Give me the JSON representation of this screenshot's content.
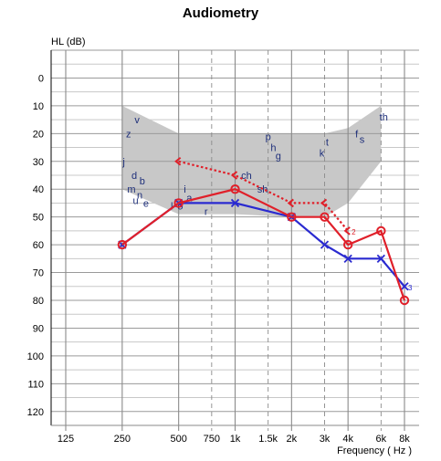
{
  "chart_data": {
    "type": "line",
    "title": "Audiometry",
    "ylabel": "HL (dB)",
    "xlabel": "Frequency ( Hz )",
    "x_ticks": [
      {
        "label": "125",
        "hz": 125
      },
      {
        "label": "250",
        "hz": 250
      },
      {
        "label": "500",
        "hz": 500
      },
      {
        "label": "750",
        "hz": 750
      },
      {
        "label": "1k",
        "hz": 1000
      },
      {
        "label": "1.5k",
        "hz": 1500
      },
      {
        "label": "2k",
        "hz": 2000
      },
      {
        "label": "3k",
        "hz": 3000
      },
      {
        "label": "4k",
        "hz": 4000
      },
      {
        "label": "6k",
        "hz": 6000
      },
      {
        "label": "8k",
        "hz": 8000
      }
    ],
    "xscale": "log2",
    "xlim": [
      125,
      8000
    ],
    "ylim": [
      -10,
      125
    ],
    "y_reversed": true,
    "y_ticks": [
      0,
      10,
      20,
      30,
      40,
      50,
      60,
      70,
      80,
      90,
      100,
      110,
      120
    ],
    "grid": true,
    "series": [
      {
        "color": "#2a2ad0",
        "marker": "x",
        "line": "solid",
        "points": [
          [
            250,
            60
          ],
          [
            500,
            45
          ],
          [
            1000,
            45
          ],
          [
            2000,
            50
          ],
          [
            3000,
            60
          ],
          [
            4000,
            65
          ],
          [
            6000,
            65
          ],
          [
            8000,
            75
          ]
        ],
        "annotation": {
          "hz": 8000,
          "db": 75,
          "text": "3"
        }
      },
      {
        "color": "#e0202a",
        "marker": "o",
        "line": "solid",
        "points": [
          [
            250,
            60
          ],
          [
            500,
            45
          ],
          [
            1000,
            40
          ],
          [
            2000,
            50
          ],
          [
            3000,
            50
          ],
          [
            4000,
            60
          ],
          [
            6000,
            55
          ],
          [
            8000,
            80
          ]
        ]
      },
      {
        "color": "#e0202a",
        "marker": "<",
        "line": "dotted",
        "points": [
          [
            500,
            30
          ],
          [
            1000,
            35
          ],
          [
            2000,
            45
          ],
          [
            3000,
            45
          ],
          [
            4000,
            55
          ]
        ],
        "annotation": {
          "hz": 4000,
          "db": 55,
          "text": "2"
        }
      }
    ],
    "speech_banana": {
      "color": "#c8c8c8",
      "upper": [
        [
          250,
          10
        ],
        [
          500,
          20
        ],
        [
          1000,
          20
        ],
        [
          2000,
          20
        ],
        [
          3000,
          20
        ],
        [
          4000,
          18
        ],
        [
          6000,
          10
        ]
      ],
      "lower": [
        [
          6000,
          30
        ],
        [
          4000,
          45
        ],
        [
          3000,
          50
        ],
        [
          2000,
          50
        ],
        [
          1000,
          49
        ],
        [
          500,
          49
        ],
        [
          250,
          40
        ]
      ]
    },
    "phonemes": [
      {
        "text": "v",
        "hz": 300,
        "db": 15
      },
      {
        "text": "z",
        "hz": 270,
        "db": 20
      },
      {
        "text": "j",
        "hz": 255,
        "db": 30
      },
      {
        "text": "d",
        "hz": 290,
        "db": 35
      },
      {
        "text": "b",
        "hz": 320,
        "db": 37
      },
      {
        "text": "m",
        "hz": 280,
        "db": 40
      },
      {
        "text": "n",
        "hz": 310,
        "db": 42
      },
      {
        "text": "u",
        "hz": 295,
        "db": 44
      },
      {
        "text": "e",
        "hz": 335,
        "db": 45
      },
      {
        "text": "l",
        "hz": 460,
        "db": 46
      },
      {
        "text": "o",
        "hz": 510,
        "db": 46
      },
      {
        "text": "i",
        "hz": 540,
        "db": 40
      },
      {
        "text": "a",
        "hz": 570,
        "db": 43
      },
      {
        "text": "r",
        "hz": 700,
        "db": 48
      },
      {
        "text": "p",
        "hz": 1500,
        "db": 21
      },
      {
        "text": "h",
        "hz": 1600,
        "db": 25
      },
      {
        "text": "g",
        "hz": 1700,
        "db": 28
      },
      {
        "text": "ch",
        "hz": 1150,
        "db": 35
      },
      {
        "text": "sh",
        "hz": 1400,
        "db": 40
      },
      {
        "text": "k",
        "hz": 2900,
        "db": 27
      },
      {
        "text": "t",
        "hz": 3100,
        "db": 23
      },
      {
        "text": "f",
        "hz": 4450,
        "db": 20
      },
      {
        "text": "s",
        "hz": 4750,
        "db": 22
      },
      {
        "text": "th",
        "hz": 6200,
        "db": 14
      }
    ]
  }
}
